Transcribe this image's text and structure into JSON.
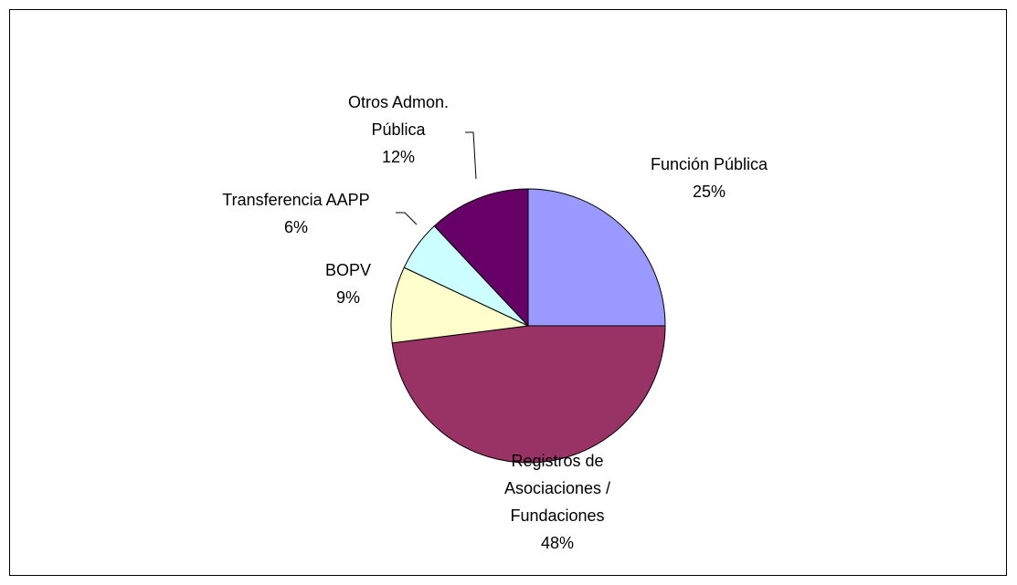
{
  "chart_data": {
    "type": "pie",
    "categories": [
      "Función Pública",
      "Registros de Asociaciones / Fundaciones",
      "BOPV",
      "Transferencia AAPP",
      "Otros Admon. Pública"
    ],
    "values": [
      25,
      48,
      9,
      6,
      12
    ],
    "value_labels": [
      "25%",
      "48%",
      "9%",
      "6%",
      "12%"
    ],
    "colors": [
      "#9999ff",
      "#993366",
      "#ffffcc",
      "#ccffff",
      "#660066"
    ]
  }
}
